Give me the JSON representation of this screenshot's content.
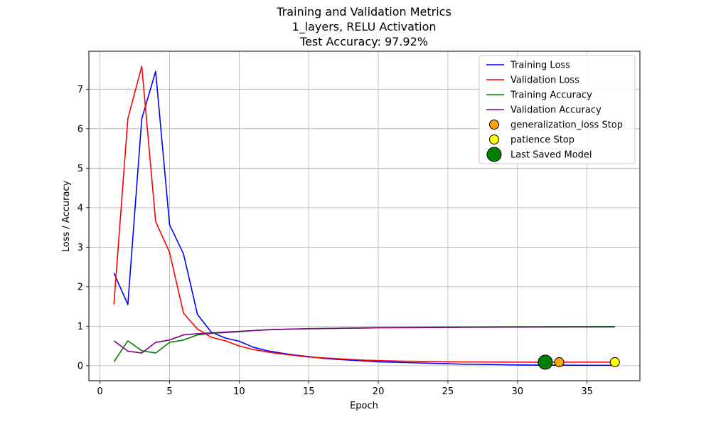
{
  "chart_data": {
    "type": "line",
    "title_lines": [
      "Training and Validation Metrics",
      "1_layers, RELU Activation",
      "Test Accuracy: 97.92%"
    ],
    "xlabel": "Epoch",
    "ylabel": "Loss / Accuracy",
    "xlim": [
      -0.8,
      38.8
    ],
    "ylim": [
      -0.38,
      7.96
    ],
    "xticks": [
      0,
      5,
      10,
      15,
      20,
      25,
      30,
      35
    ],
    "yticks": [
      0,
      1,
      2,
      3,
      4,
      5,
      6,
      7
    ],
    "grid": true,
    "legend_position": "top-right",
    "series": [
      {
        "name": "Training Loss",
        "color": "#0000ff",
        "x": [
          1,
          2,
          3,
          4,
          5,
          6,
          7,
          8,
          9,
          10,
          11,
          12,
          13,
          14,
          15,
          16,
          17,
          18,
          19,
          20,
          21,
          22,
          23,
          24,
          25,
          26,
          27,
          28,
          29,
          30,
          31,
          32,
          33,
          34,
          35,
          36,
          37
        ],
        "values": [
          2.35,
          1.55,
          6.25,
          7.45,
          3.57,
          2.83,
          1.3,
          0.85,
          0.7,
          0.62,
          0.47,
          0.38,
          0.32,
          0.27,
          0.23,
          0.19,
          0.16,
          0.14,
          0.12,
          0.1,
          0.09,
          0.08,
          0.07,
          0.06,
          0.05,
          0.04,
          0.035,
          0.03,
          0.025,
          0.02,
          0.018,
          0.015,
          0.013,
          0.012,
          0.011,
          0.01,
          0.01
        ]
      },
      {
        "name": "Validation Loss",
        "color": "#ff0000",
        "x": [
          1,
          2,
          3,
          4,
          5,
          6,
          7,
          8,
          9,
          10,
          11,
          12,
          13,
          14,
          15,
          16,
          17,
          18,
          19,
          20,
          21,
          22,
          23,
          24,
          25,
          26,
          27,
          28,
          29,
          30,
          31,
          32,
          33,
          34,
          35,
          36,
          37
        ],
        "values": [
          1.55,
          6.25,
          7.58,
          3.65,
          2.87,
          1.33,
          0.93,
          0.72,
          0.63,
          0.5,
          0.41,
          0.35,
          0.3,
          0.26,
          0.22,
          0.2,
          0.18,
          0.16,
          0.14,
          0.13,
          0.12,
          0.115,
          0.11,
          0.105,
          0.1,
          0.098,
          0.096,
          0.094,
          0.092,
          0.09,
          0.09,
          0.09,
          0.09,
          0.09,
          0.09,
          0.09,
          0.09
        ]
      },
      {
        "name": "Training Accuracy",
        "color": "#008000",
        "x": [
          1,
          2,
          3,
          4,
          5,
          6,
          7,
          8,
          9,
          10,
          11,
          12,
          13,
          14,
          15,
          16,
          17,
          18,
          19,
          20,
          21,
          22,
          23,
          24,
          25,
          26,
          27,
          28,
          29,
          30,
          31,
          32,
          33,
          34,
          35,
          36,
          37
        ],
        "values": [
          0.1,
          0.63,
          0.38,
          0.32,
          0.59,
          0.65,
          0.78,
          0.82,
          0.84,
          0.86,
          0.89,
          0.91,
          0.92,
          0.93,
          0.94,
          0.945,
          0.95,
          0.955,
          0.96,
          0.965,
          0.968,
          0.97,
          0.972,
          0.975,
          0.977,
          0.979,
          0.98,
          0.982,
          0.984,
          0.985,
          0.986,
          0.988,
          0.989,
          0.99,
          0.991,
          0.992,
          0.993
        ]
      },
      {
        "name": "Validation Accuracy",
        "color": "#800080",
        "x": [
          1,
          2,
          3,
          4,
          5,
          6,
          7,
          8,
          9,
          10,
          11,
          12,
          13,
          14,
          15,
          16,
          17,
          18,
          19,
          20,
          21,
          22,
          23,
          24,
          25,
          26,
          27,
          28,
          29,
          30,
          31,
          32,
          33,
          34,
          35,
          36,
          37
        ],
        "values": [
          0.63,
          0.37,
          0.32,
          0.59,
          0.65,
          0.78,
          0.81,
          0.83,
          0.85,
          0.87,
          0.89,
          0.91,
          0.92,
          0.93,
          0.935,
          0.94,
          0.945,
          0.95,
          0.955,
          0.96,
          0.962,
          0.964,
          0.966,
          0.968,
          0.97,
          0.972,
          0.974,
          0.975,
          0.976,
          0.977,
          0.978,
          0.979,
          0.979,
          0.98,
          0.98,
          0.98,
          0.98
        ]
      }
    ],
    "markers": [
      {
        "name": "generalization_loss Stop",
        "color": "#ffa500",
        "size": "medium",
        "x": 33,
        "y": 0.09
      },
      {
        "name": "patience Stop",
        "color": "#ffff00",
        "size": "medium",
        "x": 37,
        "y": 0.09
      },
      {
        "name": "Last Saved Model",
        "color": "#008000",
        "size": "large",
        "x": 32,
        "y": 0.09
      }
    ]
  }
}
